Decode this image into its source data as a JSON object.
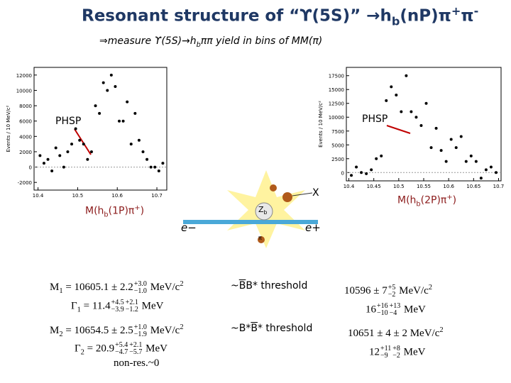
{
  "title": [
    "Resonant structure of “ϒ(5S)” →h",
    {
      "sub": "b"
    },
    "(nP)π",
    {
      "sup": "+"
    },
    "π",
    {
      "sup": "-"
    }
  ],
  "subtitle": [
    "⇒measure  ϒ(5S)→h",
    {
      "sub": "b"
    },
    "ππ yield in bins of MM(π)"
  ],
  "phsp_left": "PHSP",
  "phsp_right": "PHSP",
  "mass_left": [
    "M(h",
    {
      "sub": "b"
    },
    "(1P)π",
    {
      "sup": "+"
    },
    ")"
  ],
  "mass_right": [
    "M(h",
    {
      "sub": "b"
    },
    "(2P)π",
    {
      "sup": "+"
    },
    ")"
  ],
  "diagram": {
    "zb": [
      "Z",
      {
        "sub": "b"
      }
    ],
    "e_minus": "e−",
    "e_plus": "e+",
    "x": "X",
    "pi": "π"
  },
  "left_results": [
    [
      "M",
      {
        "sub": "1"
      },
      " = 10605.1 ± 2.2",
      {
        "up": "+3.0",
        "down": "−1.0"
      },
      " MeV/c",
      {
        "sup": "2"
      }
    ],
    [
      "Γ",
      {
        "sub": "1"
      },
      " = 11.4",
      {
        "up": "+4.5",
        "down": "−3.9"
      },
      {
        "up": "+2.1",
        "down": "−1.2"
      },
      " MeV"
    ],
    [
      "M",
      {
        "sub": "2"
      },
      " = 10654.5 ± 2.5",
      {
        "up": "+1.0",
        "down": "−1.9"
      },
      " MeV/c",
      {
        "sup": "2"
      }
    ],
    [
      "Γ",
      {
        "sub": "2"
      },
      " = 20.9",
      {
        "up": "+5.4",
        "down": "−4.7"
      },
      {
        "up": "+2.1",
        "down": "−5.7"
      },
      " MeV"
    ]
  ],
  "non_res": "non-res.~0",
  "thresholds": [
    [
      "~",
      {
        "over": "B"
      },
      "B* threshold"
    ],
    [
      "~B*",
      {
        "over": "B"
      },
      "* threshold"
    ]
  ],
  "right_results": [
    [
      "10596 ± 7",
      {
        "up": "+5",
        "down": "−2"
      },
      " MeV/c",
      {
        "sup": "2"
      }
    ],
    [
      "16",
      {
        "up": "+16",
        "down": "−10"
      },
      {
        "up": "+13",
        "down": "−4"
      },
      " MeV"
    ],
    [
      "10651 ± 4 ± 2 MeV/c",
      {
        "sup": "2"
      }
    ],
    [
      "12",
      {
        "up": "+11",
        "down": "−9"
      },
      {
        "up": "+8",
        "down": "−2"
      },
      " MeV"
    ]
  ],
  "chart_data": [
    {
      "type": "scatter",
      "ylabel": "Events / 10 MeV/c²",
      "x": [
        10.405,
        10.415,
        10.425,
        10.435,
        10.445,
        10.455,
        10.465,
        10.475,
        10.485,
        10.495,
        10.505,
        10.515,
        10.525,
        10.535,
        10.545,
        10.555,
        10.565,
        10.575,
        10.585,
        10.595,
        10.605,
        10.615,
        10.625,
        10.635,
        10.645,
        10.655,
        10.665,
        10.675,
        10.685,
        10.695,
        10.705,
        10.715
      ],
      "values": [
        1500,
        500,
        1000,
        -500,
        2500,
        1500,
        0,
        2000,
        3000,
        5000,
        3500,
        3000,
        1000,
        2000,
        8000,
        7000,
        11000,
        10000,
        12000,
        10500,
        6000,
        6000,
        8500,
        3000,
        7000,
        3500,
        2000,
        1000,
        0,
        0,
        -500,
        500
      ],
      "xlim": [
        10.39,
        10.725
      ],
      "xticks": [
        10.4,
        10.5,
        10.6,
        10.7
      ],
      "ylim": [
        -3000,
        13000
      ],
      "yticks": [
        -2000,
        0,
        2000,
        4000,
        6000,
        8000,
        10000,
        12000
      ],
      "color": "#000000"
    },
    {
      "type": "scatter",
      "ylabel": "Events / 10 MeV/c²",
      "x": [
        10.405,
        10.415,
        10.425,
        10.435,
        10.445,
        10.455,
        10.465,
        10.475,
        10.485,
        10.495,
        10.505,
        10.515,
        10.525,
        10.535,
        10.545,
        10.555,
        10.565,
        10.575,
        10.585,
        10.595,
        10.605,
        10.615,
        10.625,
        10.635,
        10.645,
        10.655,
        10.665,
        10.675,
        10.685,
        10.695
      ],
      "values": [
        -500,
        1000,
        0,
        -200,
        500,
        2500,
        3000,
        13000,
        15500,
        14000,
        11000,
        17500,
        11000,
        10000,
        8500,
        12500,
        4500,
        8000,
        4000,
        2000,
        6000,
        4500,
        6500,
        2000,
        3000,
        2000,
        -1000,
        500,
        1000,
        0
      ],
      "xlim": [
        10.395,
        10.705
      ],
      "xticks": [
        10.4,
        10.45,
        10.5,
        10.55,
        10.6,
        10.65,
        10.7
      ],
      "ylim": [
        -1500,
        19000
      ],
      "yticks": [
        0,
        2500,
        5000,
        7500,
        10000,
        12500,
        15000,
        17500
      ],
      "color": "#000000"
    }
  ]
}
